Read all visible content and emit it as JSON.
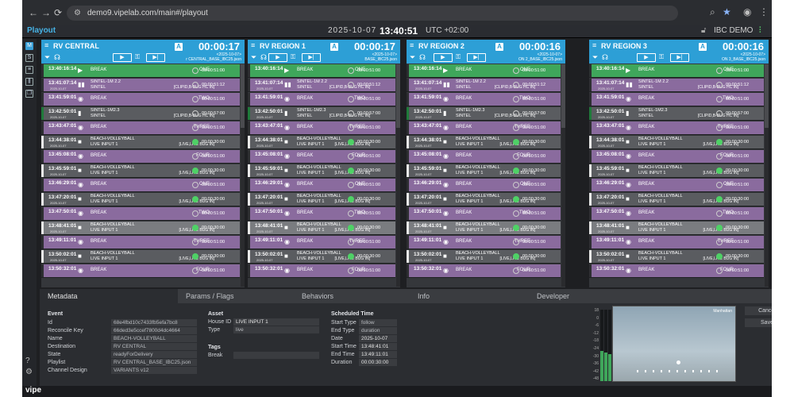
{
  "browser": {
    "url": "demo9.vipelab.com/main#/playout",
    "nav_back": "←",
    "nav_forward": "→",
    "reload": "⟳"
  },
  "app": {
    "title": "Playout",
    "date": "2025-10-07",
    "time": "13:40:51",
    "tz": "UTC +02:00",
    "instance": "IBC DEMO",
    "logo": "vipe"
  },
  "channels": [
    {
      "name": "RV CENTRAL",
      "countdown": "00:00:17",
      "playlist_date": "<2025-10-07>",
      "playlist": "r CENTRAL_BASE_IBC25.json"
    },
    {
      "name": "RV REGION 1",
      "countdown": "00:00:17",
      "playlist_date": "<2025-10-07>",
      "playlist": "BASE_IBC25.json"
    },
    {
      "name": "RV REGION 2",
      "countdown": "00:00:16",
      "playlist_date": "<2025-10-07>",
      "playlist": "ON 2_BASE_IBC25.json"
    },
    {
      "name": "RV REGION 3",
      "countdown": "00:00:16",
      "playlist_date": "<2025-10-07>",
      "playlist": "ON 3_BASE_IBC25.json"
    }
  ],
  "rows": [
    {
      "c": "green",
      "t": "13:40:16:14",
      "d": "",
      "n": "BREAK",
      "n2": "",
      "r": "ONE",
      "r2": "",
      "dur": "00:00:51:00",
      "dot": "o",
      "ic": "▶"
    },
    {
      "c": "purple",
      "t": "13:41:07:14",
      "d": "2025-10-07",
      "n": "SINTEL-1M 2.2",
      "n2": "SINTEL",
      "r": "",
      "r2": "[CLIPID,B-BUG HC IN]",
      "dur": "00:00:51:12",
      "dot": "o",
      "ic": "▮▮",
      "bar": "dark"
    },
    {
      "c": "purple",
      "t": "13:41:59:01",
      "d": "",
      "n": "BREAK",
      "n2": "",
      "r": "TWO",
      "r2": "",
      "dur": "00:00:51:00",
      "dot": "o",
      "ic": "◉"
    },
    {
      "c": "gray",
      "t": "13:42:50:01",
      "d": "2025-10-07",
      "n": "SINTEL-1M2.3",
      "n2": "SINTEL",
      "r": "",
      "r2": "[CLIPID,B-BUG HC IN]",
      "dur": "00:00:57:00",
      "dot": "o",
      "ic": "▮",
      "bar": "darkgreen"
    },
    {
      "c": "purple",
      "t": "13:43:47:01",
      "d": "",
      "n": "BREAK",
      "n2": "",
      "r": "THREE",
      "r2": "",
      "dur": "00:00:51:00",
      "dot": "o",
      "ic": "◉"
    },
    {
      "c": "gray",
      "t": "13:44:38:01",
      "d": "2025-10-07",
      "n": "BEACH-VOLLEYBALL",
      "n2": "LIVE INPUT 1",
      "r": "",
      "r2": "[LIVE,LIVE BUG IN]",
      "dur": "00:00:30:00",
      "dot": "g",
      "ic": "■",
      "bar": "white"
    },
    {
      "c": "purple",
      "t": "13:45:08:01",
      "d": "",
      "n": "BREAK",
      "n2": "",
      "r": "FOUR",
      "r2": "",
      "dur": "00:00:51:00",
      "dot": "o",
      "ic": "◉"
    },
    {
      "c": "gray",
      "t": "13:45:59:01",
      "d": "2025-10-07",
      "n": "BEACH-VOLLEYBALL",
      "n2": "LIVE INPUT 1",
      "r": "",
      "r2": "[LIVE,LIVE BUG IN]",
      "dur": "00:00:30:00",
      "dot": "g",
      "ic": "■",
      "bar": "white"
    },
    {
      "c": "purple",
      "t": "13:46:29:01",
      "d": "",
      "n": "BREAK",
      "n2": "",
      "r": "ONE",
      "r2": "",
      "dur": "00:00:51:00",
      "dot": "o",
      "ic": "◉"
    },
    {
      "c": "gray",
      "t": "13:47:20:01",
      "d": "2025-10-07",
      "n": "BEACH-VOLLEYBALL",
      "n2": "LIVE INPUT 1",
      "r": "",
      "r2": "[LIVE,LIVE BUG IN]",
      "dur": "00:00:30:00",
      "dot": "g",
      "ic": "■",
      "bar": "white"
    },
    {
      "c": "purple",
      "t": "13:47:50:01",
      "d": "",
      "n": "BREAK",
      "n2": "",
      "r": "TWO",
      "r2": "",
      "dur": "00:00:51:00",
      "dot": "o",
      "ic": "◉"
    },
    {
      "c": "hl",
      "t": "13:48:41:01",
      "d": "2025-10-07",
      "n": "BEACH-VOLLEYBALL",
      "n2": "LIVE INPUT 1",
      "r": "",
      "r2": "[LIVE,LIVE BUG IN]",
      "dur": "00:00:30:00",
      "dot": "g",
      "ic": "■",
      "bar": "white"
    },
    {
      "c": "purple",
      "t": "13:49:11:01",
      "d": "",
      "n": "BREAK",
      "n2": "",
      "r": "THREE",
      "r2": "",
      "dur": "00:00:51:00",
      "dot": "o",
      "ic": "◉"
    },
    {
      "c": "gray",
      "t": "13:50:02:01",
      "d": "2025-10-07",
      "n": "BEACH-VOLLEYBALL",
      "n2": "LIVE INPUT 1",
      "r": "",
      "r2": "[LIVE,LIVE BUG IN]",
      "dur": "00:00:30:00",
      "dot": "g",
      "ic": "■",
      "bar": "white"
    },
    {
      "c": "purple",
      "t": "13:50:32:01",
      "d": "",
      "n": "BREAK",
      "n2": "",
      "r": "FOUR",
      "r2": "",
      "dur": "00:00:51:00",
      "dot": "o",
      "ic": "◉"
    }
  ],
  "tabs": [
    "Metadata",
    "Params / Flags",
    "Behaviors",
    "Info",
    "Developer"
  ],
  "event": {
    "header": "Event",
    "fields": [
      {
        "k": "Id",
        "v": "68e4fbd10c7433fb5efa7bc8"
      },
      {
        "k": "Reconcile Key",
        "v": "66ded3e5ccef7800d4dc4664"
      },
      {
        "k": "Name",
        "v": "BEACH-VOLLEYBALL"
      },
      {
        "k": "Destination",
        "v": "RV CENTRAL"
      },
      {
        "k": "State",
        "v": "readyForDelivery"
      },
      {
        "k": "Playlist",
        "v": "RV CENTRAL_BASE_IBC25.json"
      },
      {
        "k": "Channel Design",
        "v": "VARIANTS v12"
      }
    ]
  },
  "asset": {
    "header": "Asset",
    "house_id_label": "House ID",
    "house_id": "LIVE INPUT 1",
    "type_label": "Type",
    "type": "live",
    "tags_header": "Tags",
    "break_label": "Break",
    "break_value": ""
  },
  "schedule": {
    "header": "Scheduled Time",
    "fields": [
      {
        "k": "Start Type",
        "v": "follow"
      },
      {
        "k": "End Type",
        "v": "duration"
      },
      {
        "k": "Date",
        "v": "2025-10-07"
      },
      {
        "k": "Start Time",
        "v": "13:48:41:01"
      },
      {
        "k": "End Time",
        "v": "13:49:11:01"
      },
      {
        "k": "Duration",
        "v": "00:00:30:00"
      }
    ]
  },
  "meter_ticks": [
    "18",
    "0",
    "-6",
    "-12",
    "-18",
    "-24",
    "-30",
    "-36",
    "-42",
    "-48"
  ],
  "preview_tag": "Manhattan",
  "buttons": {
    "cancel": "Cancel",
    "save": "Save"
  },
  "meter_levels": [
    0.42,
    0.4,
    0.38,
    0.36
  ]
}
